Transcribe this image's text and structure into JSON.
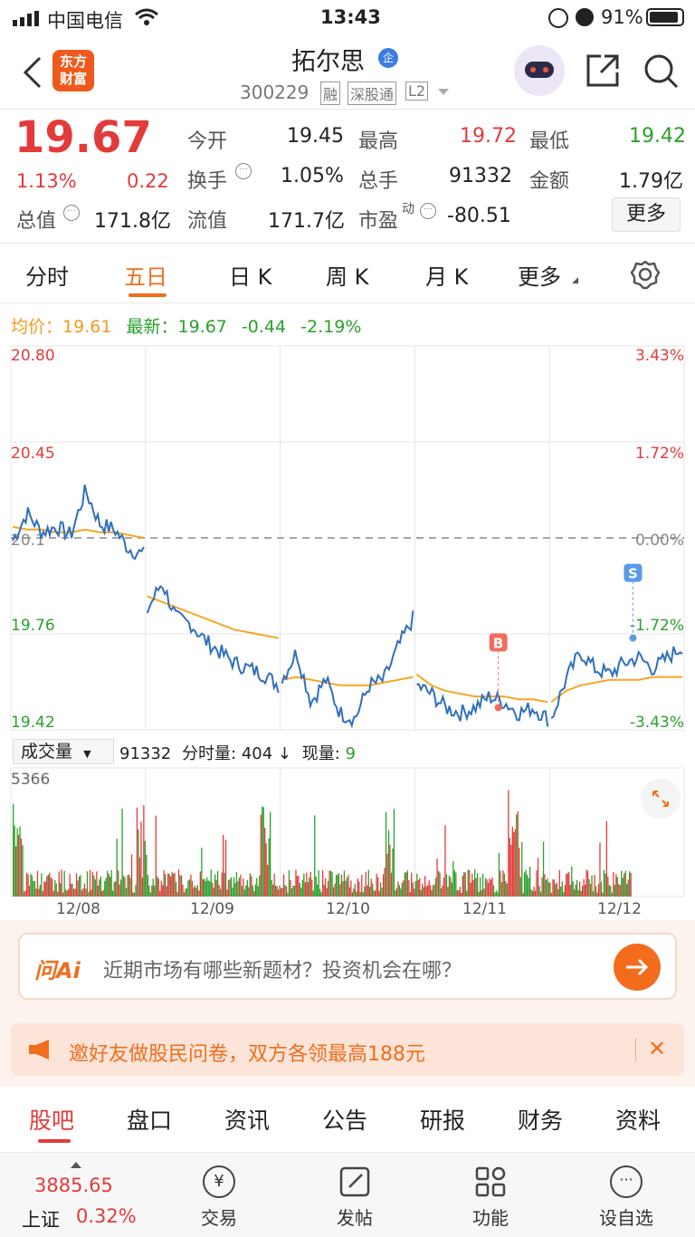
{
  "status_bar": {
    "carrier": "中国电信",
    "time": "13:43",
    "battery": "91%"
  },
  "header": {
    "logo_text_1": "东方",
    "logo_text_2": "财富",
    "title": "拓尔思",
    "badge": "企",
    "code": "300229",
    "tag1": "融",
    "tag2": "深股通",
    "tag3": "L2"
  },
  "quote": {
    "price": "19.67",
    "change_pct": "1.13%",
    "change": "0.22",
    "open_label": "今开",
    "open": "19.45",
    "high_label": "最高",
    "high": "19.72",
    "low_label": "最低",
    "low": "19.42",
    "turnover_label": "换手",
    "turnover": "1.05%",
    "volume_label": "总手",
    "volume": "91332",
    "amount_label": "金额",
    "amount": "1.79亿",
    "mktcap_label": "总值",
    "mktcap": "171.8亿",
    "float_label": "流值",
    "float": "171.7亿",
    "pe_label": "市盈",
    "pe_sup": "动",
    "pe": "-80.51",
    "more": "更多"
  },
  "tabs": [
    "分时",
    "五日",
    "日 K",
    "周 K",
    "月 K",
    "更多"
  ],
  "active_tab": "五日",
  "chart_info": {
    "avg_label": "均价：",
    "avg": "19.61",
    "latest_label": "最新：",
    "latest": "19.67",
    "delta": "-0.44",
    "delta_pct": "-2.19%"
  },
  "vol_info": {
    "selector": "成交量",
    "total": "91332",
    "min_vol_label": "分时量:",
    "min_vol": "404 ↓",
    "now_label": "现量:",
    "now": "9"
  },
  "chart_data": {
    "type": "line",
    "y_left_ticks": [
      "20.80",
      "20.45",
      "20.1",
      "19.76",
      "19.42"
    ],
    "y_right_ticks": [
      "3.43%",
      "1.72%",
      "0.00%",
      "-1.72%",
      "-3.43%"
    ],
    "x_labels": [
      "12/08",
      "12/09",
      "12/10",
      "12/11",
      "12/12"
    ],
    "ylim": [
      19.42,
      20.8
    ],
    "prev_close": 20.11,
    "vol_max_label": "5366",
    "markers": [
      {
        "label": "B",
        "day": 3,
        "value": 19.5
      },
      {
        "label": "S",
        "day": 4,
        "value": 19.75
      }
    ],
    "price": [
      [
        20.1,
        20.2,
        20.13,
        20.15,
        20.12,
        20.28,
        20.16,
        20.14,
        20.07,
        20.05
      ],
      [
        19.85,
        19.95,
        19.82,
        19.8,
        19.74,
        19.7,
        19.66,
        19.64,
        19.62,
        19.58
      ],
      [
        19.6,
        19.7,
        19.52,
        19.6,
        19.48,
        19.46,
        19.58,
        19.6,
        19.72,
        19.82
      ],
      [
        19.58,
        19.55,
        19.5,
        19.48,
        19.5,
        19.54,
        19.52,
        19.48,
        19.5,
        19.46
      ],
      [
        19.46,
        19.6,
        19.7,
        19.64,
        19.62,
        19.66,
        19.68,
        19.64,
        19.68,
        19.72
      ]
    ],
    "avg": [
      [
        20.15,
        20.14,
        20.14,
        20.13,
        20.13,
        20.14,
        20.13,
        20.13,
        20.12,
        20.11
      ],
      [
        19.9,
        19.88,
        19.86,
        19.84,
        19.82,
        19.8,
        19.78,
        19.77,
        19.76,
        19.75
      ],
      [
        19.6,
        19.61,
        19.6,
        19.59,
        19.58,
        19.58,
        19.58,
        19.59,
        19.6,
        19.61
      ],
      [
        19.62,
        19.58,
        19.56,
        19.55,
        19.54,
        19.54,
        19.54,
        19.53,
        19.53,
        19.52
      ],
      [
        19.52,
        19.56,
        19.58,
        19.59,
        19.6,
        19.6,
        19.6,
        19.61,
        19.61,
        19.61
      ]
    ]
  },
  "ai_bar": {
    "logo": "问Ai",
    "text": "近期市场有哪些新题材？投资机会在哪？"
  },
  "promo": {
    "text": "邀好友做股民问卷，双方各领最高188元"
  },
  "content_tabs": [
    "股吧",
    "盘口",
    "资讯",
    "公告",
    "研报",
    "财务",
    "资料"
  ],
  "bottom_nav": {
    "index_value": "3885.65",
    "index_name": "上证",
    "index_pct": "0.32%",
    "items": [
      "交易",
      "发帖",
      "功能",
      "设自选"
    ]
  }
}
